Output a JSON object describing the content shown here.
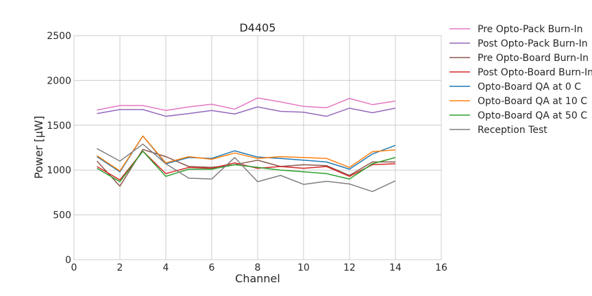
{
  "chart_data": {
    "type": "line",
    "title": "D4405",
    "xlabel": "Channel",
    "ylabel": "Power [µW]",
    "xlim": [
      0,
      16
    ],
    "ylim": [
      0,
      2500
    ],
    "xticks": [
      0,
      2,
      4,
      6,
      8,
      10,
      12,
      14,
      16
    ],
    "yticks": [
      0,
      500,
      1000,
      1500,
      2000,
      2500
    ],
    "grid": true,
    "legend_position": "outside-right",
    "x": [
      1,
      2,
      3,
      4,
      5,
      6,
      7,
      8,
      9,
      10,
      11,
      12,
      13,
      14
    ],
    "series": [
      {
        "name": "Pre Opto-Pack Burn-In",
        "color": "#e377c2",
        "values": [
          1670,
          1720,
          1720,
          1665,
          1705,
          1735,
          1680,
          1805,
          1760,
          1710,
          1695,
          1800,
          1730,
          1770
        ]
      },
      {
        "name": "Post Opto-Pack Burn-In",
        "color": "#9467bd",
        "values": [
          1630,
          1675,
          1675,
          1600,
          1630,
          1665,
          1625,
          1705,
          1655,
          1645,
          1600,
          1690,
          1640,
          1690
        ]
      },
      {
        "name": "Pre Opto-Board Burn-In",
        "color": "#8c564b",
        "values": [
          1100,
          820,
          1230,
          1150,
          1040,
          1030,
          1060,
          1110,
          1040,
          1060,
          1050,
          940,
          1090,
          1090
        ]
      },
      {
        "name": "Post Opto-Board Burn-In",
        "color": "#d62728",
        "values": [
          1040,
          890,
          1210,
          960,
          1030,
          1020,
          1080,
          1020,
          1040,
          1020,
          1040,
          930,
          1060,
          1070
        ]
      },
      {
        "name": "Opto-Board QA at 0 C",
        "color": "#1f77b4",
        "values": [
          1150,
          980,
          1380,
          1070,
          1140,
          1130,
          1215,
          1145,
          1130,
          1110,
          1090,
          1010,
          1180,
          1275
        ]
      },
      {
        "name": "Opto-Board QA at 10 C",
        "color": "#ff7f0e",
        "values": [
          1160,
          990,
          1380,
          1080,
          1150,
          1120,
          1190,
          1130,
          1150,
          1140,
          1130,
          1030,
          1205,
          1225
        ]
      },
      {
        "name": "Opto-Board QA at 50 C",
        "color": "#2ca02c",
        "values": [
          1020,
          870,
          1210,
          930,
          1010,
          1010,
          1060,
          1030,
          1000,
          980,
          960,
          900,
          1070,
          1140
        ]
      },
      {
        "name": "Reception Test",
        "color": "#7f7f7f",
        "values": [
          1240,
          1100,
          1290,
          1070,
          910,
          900,
          1140,
          870,
          940,
          840,
          875,
          845,
          760,
          880
        ]
      }
    ]
  }
}
